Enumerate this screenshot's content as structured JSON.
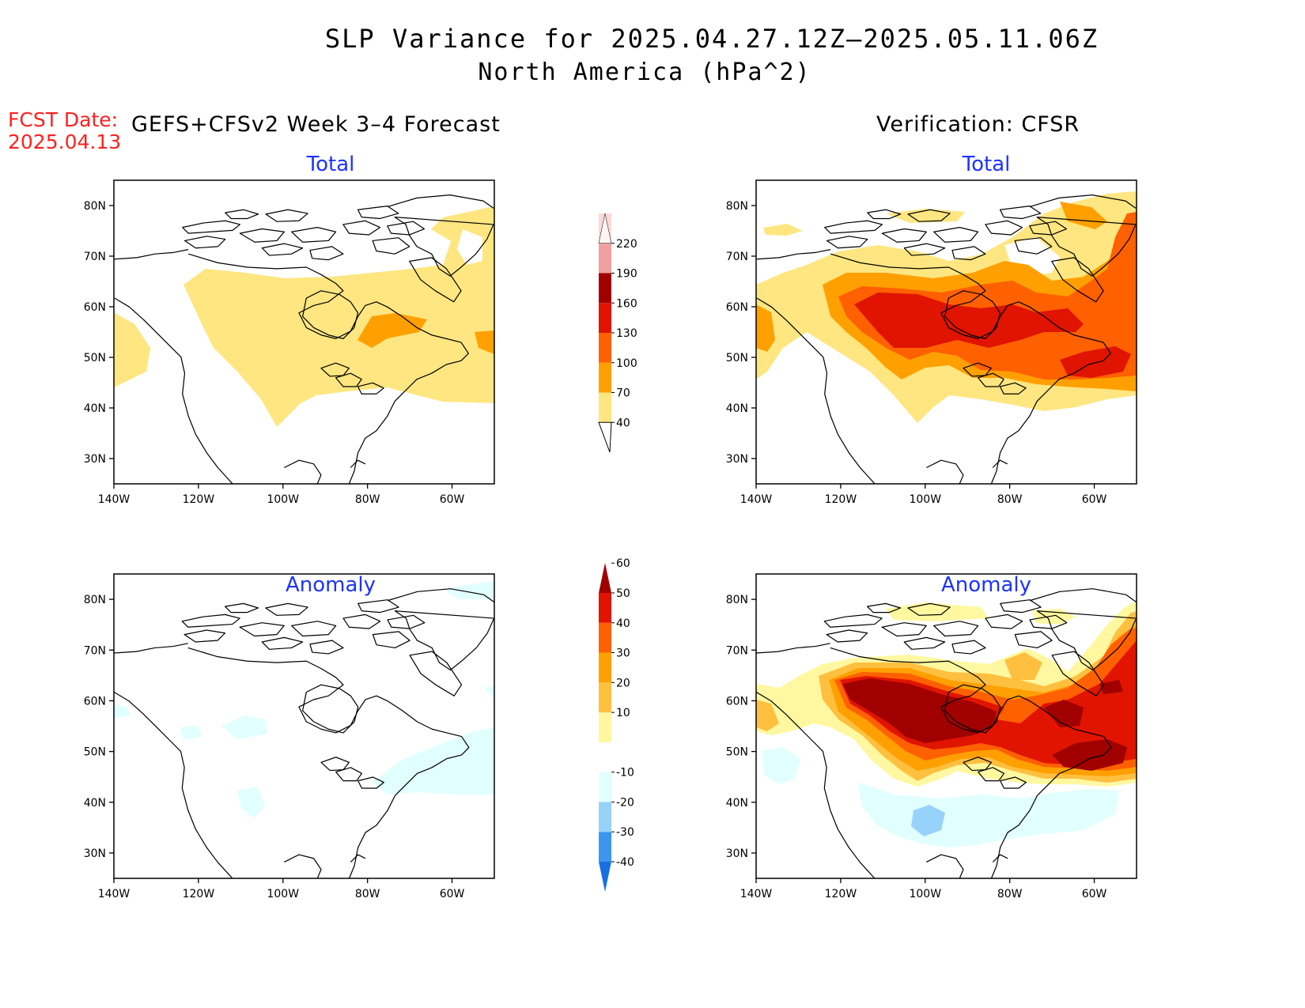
{
  "header": {
    "title": "SLP Variance for 2025.04.27.12Z–2025.05.11.06Z",
    "subtitle": "North America (hPa^2)",
    "fcst_label": "FCST Date:",
    "fcst_date": "2025.04.13",
    "left_heading": "GEFS+CFSv2 Week 3–4 Forecast",
    "right_heading": "Verification: CFSR"
  },
  "panels": {
    "fc_total": {
      "title": "Total"
    },
    "ver_total": {
      "title": "Total"
    },
    "fc_anom": {
      "title": "Anomaly"
    },
    "ver_anom": {
      "title": "Anomaly"
    }
  },
  "axes": {
    "lat_labels": [
      "80N",
      "70N",
      "60N",
      "50N",
      "40N",
      "30N"
    ],
    "lon_labels": [
      "140W",
      "120W",
      "100W",
      "80W",
      "60W"
    ]
  },
  "colorbar_total": {
    "levels": [
      "40",
      "70",
      "100",
      "130",
      "160",
      "190",
      "220"
    ],
    "colors": [
      "#ffe680",
      "#ffa000",
      "#ff6000",
      "#e01400",
      "#a00000",
      "#f0a0a0",
      "#ffd8d8"
    ]
  },
  "colorbar_anomaly": {
    "levels": [
      "-40",
      "-30",
      "-20",
      "-10",
      "10",
      "20",
      "30",
      "40",
      "50",
      "60"
    ],
    "colors": [
      "#1870e0",
      "#3c96f0",
      "#96d2fa",
      "#e1ffff",
      "#ffffff",
      "#fff8a0",
      "#ffc040",
      "#ffa000",
      "#ff6000",
      "#e01400",
      "#a00000"
    ]
  },
  "colors": {
    "title_blue": "#1d33ff",
    "fcst_red": "#ff2020"
  }
}
